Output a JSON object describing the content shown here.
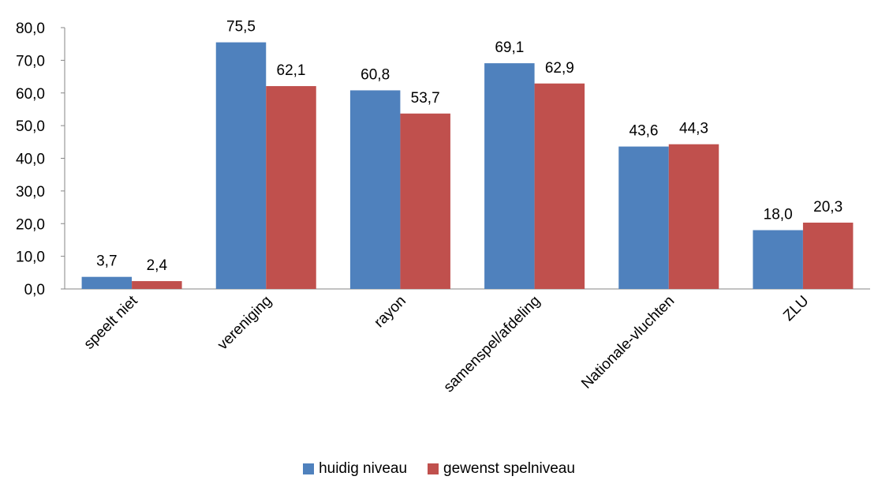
{
  "chart_data": {
    "type": "bar",
    "categories": [
      "speelt niet",
      "vereniging",
      "rayon",
      "samenspel/afdeling",
      "Nationale-vluchten",
      "ZLU"
    ],
    "series": [
      {
        "name": "huidig niveau",
        "color": "#4F81BD",
        "values": [
          3.7,
          75.5,
          60.8,
          69.1,
          43.6,
          18.0
        ],
        "labels": [
          "3,7",
          "75,5",
          "60,8",
          "69,1",
          "43,6",
          "18,0"
        ]
      },
      {
        "name": "gewenst spelniveau",
        "color": "#C0504D",
        "values": [
          2.4,
          62.1,
          53.7,
          62.9,
          44.3,
          20.3
        ],
        "labels": [
          "2,4",
          "62,1",
          "53,7",
          "62,9",
          "44,3",
          "20,3"
        ]
      }
    ],
    "ylim": [
      0,
      80
    ],
    "yticks": [
      "0,0",
      "10,0",
      "20,0",
      "30,0",
      "40,0",
      "50,0",
      "60,0",
      "70,0",
      "80,0"
    ],
    "legend_position": "bottom",
    "grid": false
  }
}
